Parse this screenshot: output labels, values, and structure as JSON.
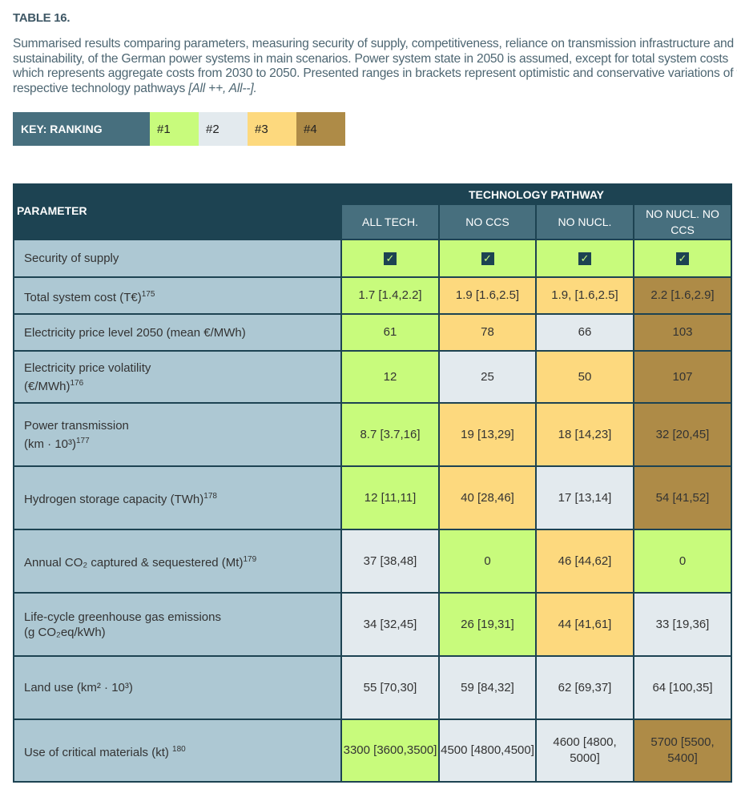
{
  "title": "TABLE 16.",
  "caption": "Summarised results comparing parameters, measuring security of supply, competitiveness, reliance on transmission infrastructure and sustainability, of the German power systems in main scenarios. Power system state in 2050 is assumed, except for total system costs which represents aggregate costs from 2030 to 2050. Presented ranges in brackets represent optimistic and conservative variations of the respective technology pathways",
  "caption_italic": "[All ++, All--].",
  "key": {
    "label": "KEY: RANKING",
    "items": [
      "#1",
      "#2",
      "#3",
      "#4"
    ]
  },
  "colors": {
    "rank1": "#c8fb7c",
    "rank2": "#e3eaee",
    "rank3": "#fdd97e",
    "rank4": "#ae8b47",
    "header": "#1d4352",
    "subheader": "#476f7e",
    "parameter": "#adc8d3"
  },
  "table": {
    "param_header": "PARAMETER",
    "group_header": "TECHNOLOGY PATHWAY",
    "columns": [
      "ALL TECH.",
      "NO CCS",
      "NO NUCL.",
      "NO NUCL. NO CCS"
    ],
    "rows": [
      {
        "p": "Security of supply",
        "sup": "",
        "cells": [
          {
            "v": "check-icon",
            "r": 1
          },
          {
            "v": "check-icon",
            "r": 1
          },
          {
            "v": "check-icon",
            "r": 1
          },
          {
            "v": "check-icon",
            "r": 1
          }
        ]
      },
      {
        "p": "Total system cost (T€)",
        "sup": "175",
        "cells": [
          {
            "v": "1.7 [1.4,2.2]",
            "r": 1
          },
          {
            "v": "1.9 [1.6,2.5]",
            "r": 3
          },
          {
            "v": "1.9, [1.6,2.5]",
            "r": 3
          },
          {
            "v": "2.2 [1.6,2.9]",
            "r": 4
          }
        ]
      },
      {
        "p": "Electricity price level 2050 (mean €/MWh)",
        "sup": "",
        "cells": [
          {
            "v": "61",
            "r": 1
          },
          {
            "v": "78",
            "r": 3
          },
          {
            "v": "66",
            "r": 2
          },
          {
            "v": "103",
            "r": 4
          }
        ]
      },
      {
        "p": "Electricity price volatility (€/MWh)",
        "sup": "176",
        "cells": [
          {
            "v": "12",
            "r": 1
          },
          {
            "v": "25",
            "r": 2
          },
          {
            "v": "50",
            "r": 3
          },
          {
            "v": "107",
            "r": 4
          }
        ]
      },
      {
        "p": "Power transmission (km · 10³)",
        "sup": "177",
        "cells": [
          {
            "v": "8.7 [3.7,16]",
            "r": 1
          },
          {
            "v": "19 [13,29]",
            "r": 3
          },
          {
            "v": "18 [14,23]",
            "r": 3
          },
          {
            "v": "32 [20,45]",
            "r": 4
          }
        ]
      },
      {
        "p": "Hydrogen storage capacity (TWh)",
        "sup": "178",
        "cells": [
          {
            "v": "12 [11,11]",
            "r": 1
          },
          {
            "v": "40 [28,46]",
            "r": 3
          },
          {
            "v": "17 [13,14]",
            "r": 2
          },
          {
            "v": "54 [41,52]",
            "r": 4
          }
        ]
      },
      {
        "p": "Annual CO₂ captured & sequestered (Mt)",
        "sup": "179",
        "cells": [
          {
            "v": "37 [38,48]",
            "r": 2
          },
          {
            "v": "0",
            "r": 1
          },
          {
            "v": "46 [44,62]",
            "r": 3
          },
          {
            "v": "0",
            "r": 1
          }
        ]
      },
      {
        "p": "Life-cycle greenhouse gas emissions (g CO₂eq/kWh)",
        "sup": "",
        "cells": [
          {
            "v": "34 [32,45]",
            "r": 2
          },
          {
            "v": "26 [19,31]",
            "r": 1
          },
          {
            "v": "44 [41,61]",
            "r": 3
          },
          {
            "v": "33 [19,36]",
            "r": 2
          }
        ]
      },
      {
        "p": "Land use (km² · 10³)",
        "sup": "",
        "cells": [
          {
            "v": "55 [70,30]",
            "r": 2
          },
          {
            "v": "59 [84,32]",
            "r": 2
          },
          {
            "v": "62 [69,37]",
            "r": 2
          },
          {
            "v": "64 [100,35]",
            "r": 2
          }
        ]
      },
      {
        "p": "Use of critical materials (kt) ",
        "sup": "180",
        "cells": [
          {
            "v": "3300 [3600,3500]",
            "r": 1
          },
          {
            "v": "4500 [4800,4500]",
            "r": 2
          },
          {
            "v": "4600 [4800, 5000]",
            "r": 2
          },
          {
            "v": "5700 [5500, 5400]",
            "r": 4
          }
        ]
      }
    ]
  }
}
